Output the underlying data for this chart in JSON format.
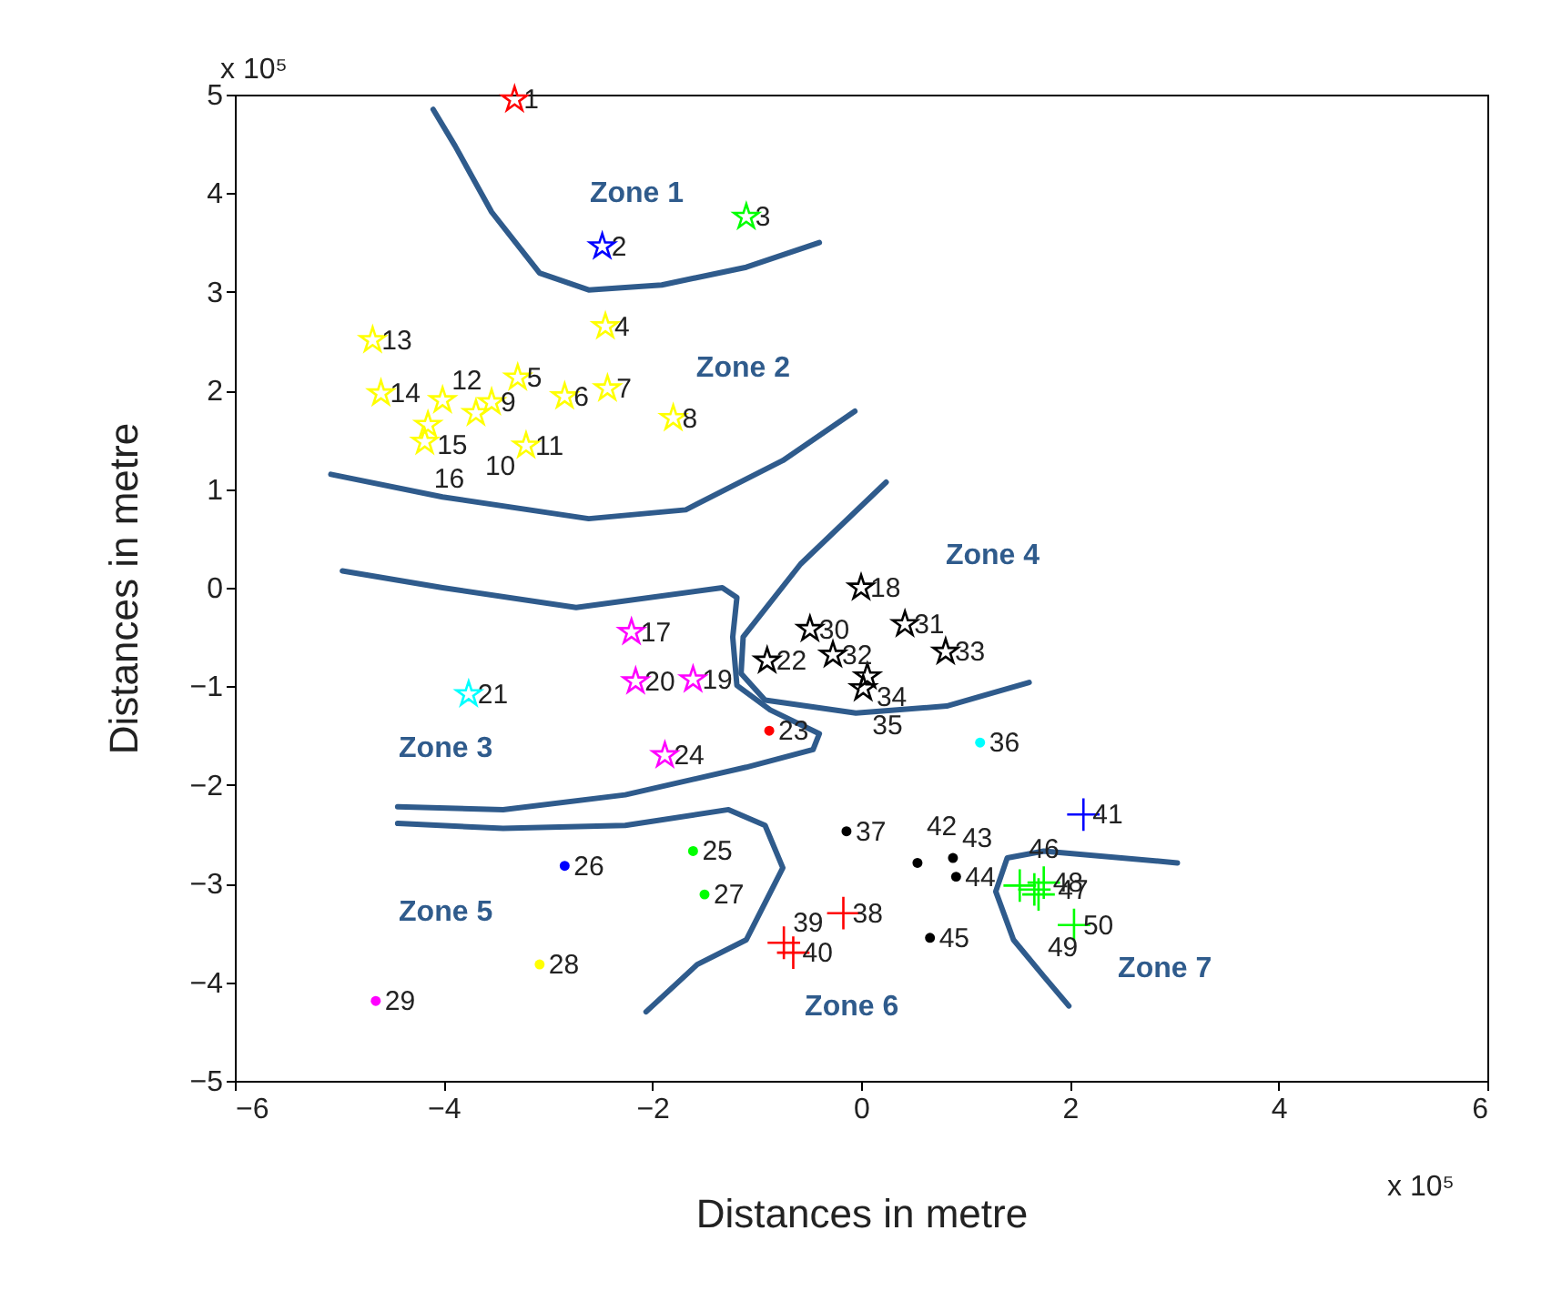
{
  "chart_data": {
    "type": "scatter",
    "xlabel": "Distances in metre",
    "ylabel": "Distances in metre",
    "xlim": [
      -6,
      6
    ],
    "ylim": [
      -5,
      5
    ],
    "xticks": [
      -6,
      -4,
      -2,
      0,
      2,
      4,
      6
    ],
    "yticks": [
      -5,
      -4,
      -3,
      -2,
      -1,
      0,
      1,
      2,
      3,
      4,
      5
    ],
    "grid": false,
    "series": [
      {
        "type": "scatter",
        "marker": "star",
        "color": "#ff0000",
        "x": [
          -3.32
        ],
        "values": [
          4.95
        ]
      },
      {
        "type": "scatter",
        "marker": "star",
        "color": "#0000ff",
        "x": [
          -2.48
        ],
        "values": [
          3.46
        ]
      },
      {
        "type": "scatter",
        "marker": "star",
        "color": "#00ff00",
        "x": [
          -1.1
        ],
        "values": [
          3.76
        ]
      },
      {
        "type": "scatter",
        "marker": "star",
        "color": "#ffff00",
        "x": [
          -2.45,
          -3.29,
          -2.84,
          -2.43,
          -1.8,
          -3.54,
          -3.69,
          -3.21,
          -4.01,
          -4.68,
          -4.6,
          -4.15,
          -4.18
        ],
        "values": [
          2.65,
          2.13,
          1.94,
          2.02,
          1.72,
          1.88,
          1.77,
          1.44,
          1.9,
          2.51,
          1.97,
          1.65,
          1.48
        ]
      },
      {
        "type": "scatter",
        "marker": "star",
        "color": "#ff00ff",
        "x": [
          -2.2,
          -1.61,
          -2.16,
          -1.88
        ],
        "values": [
          -0.45,
          -0.93,
          -0.95,
          -1.7
        ]
      },
      {
        "type": "scatter",
        "marker": "star",
        "color": "#00ffff",
        "x": [
          -3.76
        ],
        "values": [
          -1.08
        ]
      },
      {
        "type": "scatter",
        "marker": "star",
        "color": "#000000",
        "x": [
          0.0,
          -0.9,
          -0.49,
          0.42,
          -0.27,
          0.81,
          0.06,
          0.02
        ],
        "values": [
          0.0,
          -0.74,
          -0.42,
          -0.37,
          -0.68,
          -0.65,
          -0.9,
          -1.02
        ]
      },
      {
        "type": "scatter",
        "marker": "circle",
        "color": "#ff0000",
        "x": [
          -0.88
        ],
        "values": [
          -1.45
        ]
      },
      {
        "type": "scatter",
        "marker": "circle",
        "color": "#00ff00",
        "x": [
          -1.61,
          -1.5
        ],
        "values": [
          -2.67,
          -3.11
        ]
      },
      {
        "type": "scatter",
        "marker": "circle",
        "color": "#0000ff",
        "x": [
          -2.84
        ],
        "values": [
          -2.82
        ]
      },
      {
        "type": "scatter",
        "marker": "circle",
        "color": "#ffff00",
        "x": [
          -3.08
        ],
        "values": [
          -3.82
        ]
      },
      {
        "type": "scatter",
        "marker": "circle",
        "color": "#ff00ff",
        "x": [
          -4.65
        ],
        "values": [
          -4.19
        ]
      },
      {
        "type": "scatter",
        "marker": "circle",
        "color": "#00ffff",
        "x": [
          1.14
        ],
        "values": [
          -1.57
        ]
      },
      {
        "type": "scatter",
        "marker": "circle",
        "color": "#000000",
        "x": [
          -0.14,
          0.54,
          0.88,
          0.91,
          0.66
        ],
        "values": [
          -2.47,
          -2.79,
          -2.74,
          -2.93,
          -3.55
        ]
      },
      {
        "type": "scatter",
        "marker": "cross",
        "color": "#ff0000",
        "x": [
          -0.17,
          -0.74,
          -0.65
        ],
        "values": [
          -3.3,
          -3.6,
          -3.7
        ]
      },
      {
        "type": "scatter",
        "marker": "cross",
        "color": "#0000ff",
        "x": [
          2.13
        ],
        "values": [
          -2.3
        ]
      },
      {
        "type": "scatter",
        "marker": "cross",
        "color": "#00ff00",
        "x": [
          1.52,
          1.66,
          1.75,
          1.7,
          2.04
        ],
        "values": [
          -3.02,
          -3.06,
          -2.99,
          -3.11,
          -3.42
        ]
      },
      {
        "type": "line",
        "color": "#2f5b8c",
        "x": [
          -4.1,
          -3.89,
          -3.54,
          -3.08,
          -2.61,
          -1.91,
          -1.1,
          -0.4
        ],
        "values": [
          4.85,
          4.48,
          3.81,
          3.19,
          3.02,
          3.07,
          3.25,
          3.5
        ]
      },
      {
        "type": "line",
        "color": "#2f5b8c",
        "x": [
          -5.08,
          -4.01,
          -2.61,
          -1.68,
          -0.75,
          -0.06
        ],
        "values": [
          1.15,
          0.92,
          0.7,
          0.79,
          1.29,
          1.79
        ]
      },
      {
        "type": "line",
        "color": "#2f5b8c",
        "x": [
          -4.97,
          -4.01,
          -2.73,
          -1.33,
          -1.19,
          -1.23,
          -1.19,
          -0.87,
          -0.4,
          -0.46,
          -1.1,
          -2.26,
          -3.43,
          -4.44
        ],
        "values": [
          0.17,
          0.0,
          -0.2,
          0.0,
          -0.1,
          -0.5,
          -0.99,
          -1.24,
          -1.48,
          -1.64,
          -1.82,
          -2.1,
          -2.25,
          -2.22
        ]
      },
      {
        "type": "line",
        "color": "#2f5b8c",
        "x": [
          0.24,
          -0.58,
          -1.13,
          -1.15,
          -0.92,
          -0.05,
          0.82,
          1.61
        ],
        "values": [
          1.07,
          0.24,
          -0.5,
          -0.87,
          -1.14,
          -1.27,
          -1.2,
          -0.96
        ]
      },
      {
        "type": "line",
        "color": "#2f5b8c",
        "x": [
          -4.44,
          -3.43,
          -2.26,
          -1.27,
          -0.92,
          -0.75,
          -1.1,
          -1.57,
          -2.06
        ],
        "values": [
          -2.39,
          -2.44,
          -2.41,
          -2.25,
          -2.41,
          -2.84,
          -3.57,
          -3.82,
          -4.3
        ]
      },
      {
        "type": "line",
        "color": "#2f5b8c",
        "x": [
          1.99,
          1.75,
          1.46,
          1.29,
          1.4,
          1.75,
          3.03
        ],
        "values": [
          -4.24,
          -3.94,
          -3.57,
          -3.08,
          -2.74,
          -2.67,
          -2.79
        ]
      }
    ],
    "annotations": [
      "Zone 1",
      "Zone 2",
      "Zone 3",
      "Zone 4",
      "Zone 5",
      "Zone 6",
      "Zone 7",
      "x 10⁵",
      "x 10⁵",
      {
        "text": "1",
        "x": -3.32,
        "y": 4.95
      },
      {
        "text": "2",
        "x": -2.48,
        "y": 3.46
      },
      {
        "text": "3",
        "x": -1.1,
        "y": 3.76
      },
      {
        "text": "4",
        "x": -2.45,
        "y": 2.65
      },
      {
        "text": "5",
        "x": -3.29,
        "y": 2.13
      },
      {
        "text": "6",
        "x": -2.84,
        "y": 1.94
      },
      {
        "text": "7",
        "x": -2.43,
        "y": 2.02
      },
      {
        "text": "8",
        "x": -1.8,
        "y": 1.72
      },
      {
        "text": "9",
        "x": -3.54,
        "y": 1.88
      },
      {
        "text": "10",
        "x": -3.69,
        "y": 1.77
      },
      {
        "text": "11",
        "x": -3.21,
        "y": 1.44
      },
      {
        "text": "12",
        "x": -4.01,
        "y": 1.9
      },
      {
        "text": "13",
        "x": -4.68,
        "y": 2.51
      },
      {
        "text": "14",
        "x": -4.6,
        "y": 1.97
      },
      {
        "text": "15",
        "x": -4.15,
        "y": 1.65
      },
      {
        "text": "16",
        "x": -4.18,
        "y": 1.48
      },
      {
        "text": "17",
        "x": -2.2,
        "y": -0.45
      },
      {
        "text": "18",
        "x": 0.0,
        "y": 0.0
      },
      {
        "text": "19",
        "x": -1.61,
        "y": -0.93
      },
      {
        "text": "20",
        "x": -2.16,
        "y": -0.95
      },
      {
        "text": "21",
        "x": -3.76,
        "y": -1.08
      },
      {
        "text": "22",
        "x": -0.9,
        "y": -0.74
      },
      {
        "text": "23",
        "x": -0.88,
        "y": -1.45
      },
      {
        "text": "24",
        "x": -1.88,
        "y": -1.7
      },
      {
        "text": "25",
        "x": -1.61,
        "y": -2.67
      },
      {
        "text": "26",
        "x": -2.84,
        "y": -2.82
      },
      {
        "text": "27",
        "x": -1.5,
        "y": -3.11
      },
      {
        "text": "28",
        "x": -3.08,
        "y": -3.82
      },
      {
        "text": "29",
        "x": -4.65,
        "y": -4.19
      },
      {
        "text": "30",
        "x": -0.49,
        "y": -0.42
      },
      {
        "text": "31",
        "x": 0.42,
        "y": -0.37
      },
      {
        "text": "32",
        "x": -0.27,
        "y": -0.68
      },
      {
        "text": "33",
        "x": 0.81,
        "y": -0.65
      },
      {
        "text": "34",
        "x": 0.06,
        "y": -0.9
      },
      {
        "text": "35",
        "x": 0.02,
        "y": -1.02
      },
      {
        "text": "36",
        "x": 1.14,
        "y": -1.57
      },
      {
        "text": "37",
        "x": -0.14,
        "y": -2.47
      },
      {
        "text": "38",
        "x": -0.17,
        "y": -3.3
      },
      {
        "text": "39",
        "x": -0.74,
        "y": -3.6
      },
      {
        "text": "40",
        "x": -0.65,
        "y": -3.7
      },
      {
        "text": "41",
        "x": 2.13,
        "y": -2.3
      },
      {
        "text": "42",
        "x": 0.54,
        "y": -2.79
      },
      {
        "text": "43",
        "x": 0.88,
        "y": -2.74
      },
      {
        "text": "44",
        "x": 0.91,
        "y": -2.93
      },
      {
        "text": "45",
        "x": 0.66,
        "y": -3.55
      },
      {
        "text": "46",
        "x": 1.52,
        "y": -3.02
      },
      {
        "text": "47",
        "x": 1.66,
        "y": -3.06
      },
      {
        "text": "48",
        "x": 1.75,
        "y": -2.99
      },
      {
        "text": "49",
        "x": 1.7,
        "y": -3.11
      },
      {
        "text": "50",
        "x": 2.04,
        "y": -3.42
      }
    ]
  }
}
